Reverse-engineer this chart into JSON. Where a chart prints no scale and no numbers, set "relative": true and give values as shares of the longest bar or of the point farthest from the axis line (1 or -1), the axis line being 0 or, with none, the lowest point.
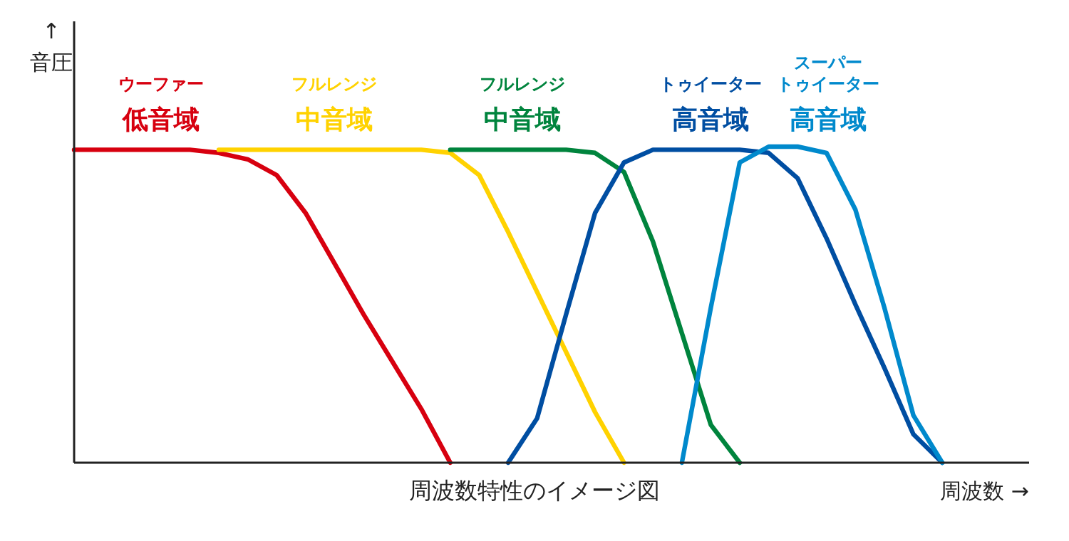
{
  "chart_data": {
    "type": "line",
    "relative": true,
    "xlabel": "周波数 →",
    "ylabel": "↑\n音圧",
    "annotations": [
      "周波数特性のイメージ図"
    ],
    "line_style": "solid",
    "categories": [
      null,
      null,
      null,
      null,
      null,
      null,
      null,
      null,
      null,
      null,
      null,
      null,
      null,
      null,
      null,
      null,
      null,
      null,
      null,
      null,
      null,
      null,
      null,
      null,
      null,
      null,
      null,
      null,
      null,
      null,
      null,
      null,
      null,
      null
    ],
    "series": [
      {
        "name": "ウーファー低音域",
        "color": "#d7000f",
        "values": [
          0.99,
          0.99,
          0.99,
          0.99,
          0.99,
          0.98,
          0.96,
          0.91,
          0.79,
          0.63,
          0.47,
          0.32,
          0.17,
          0,
          null,
          null,
          null,
          null,
          null,
          null,
          null,
          null,
          null,
          null,
          null,
          null,
          null,
          null,
          null,
          null,
          null,
          null,
          null,
          null
        ]
      },
      {
        "name": "フルレンジ中音域",
        "color": "#ffd200",
        "values": [
          null,
          null,
          null,
          null,
          null,
          0.99,
          0.99,
          0.99,
          0.99,
          0.99,
          0.99,
          0.99,
          0.99,
          0.98,
          0.91,
          0.73,
          0.54,
          0.35,
          0.16,
          0,
          null,
          null,
          null,
          null,
          null,
          null,
          null,
          null,
          null,
          null,
          null,
          null,
          null,
          null
        ]
      },
      {
        "name": "フルレンジ中音域",
        "color": "#00843d",
        "values": [
          null,
          null,
          null,
          null,
          null,
          null,
          null,
          null,
          null,
          null,
          null,
          null,
          null,
          0.99,
          0.99,
          0.99,
          0.99,
          0.99,
          0.98,
          0.92,
          0.7,
          0.41,
          0.12,
          0,
          null,
          null,
          null,
          null,
          null,
          null,
          null,
          null,
          null,
          null
        ]
      },
      {
        "name": "トゥイーター高音域",
        "color": "#004ea2",
        "values": [
          null,
          null,
          null,
          null,
          null,
          null,
          null,
          null,
          null,
          null,
          null,
          null,
          null,
          null,
          null,
          0,
          0.14,
          0.47,
          0.79,
          0.95,
          0.99,
          0.99,
          0.99,
          0.99,
          0.98,
          0.9,
          0.71,
          0.5,
          0.3,
          0.09,
          0,
          null,
          null,
          null
        ]
      },
      {
        "name": "スーパートゥイーター高音域",
        "color": "#0089cc",
        "values": [
          null,
          null,
          null,
          null,
          null,
          null,
          null,
          null,
          null,
          null,
          null,
          null,
          null,
          null,
          null,
          null,
          null,
          null,
          null,
          null,
          null,
          0,
          0.49,
          0.95,
          1,
          1,
          0.98,
          0.8,
          0.49,
          0.15,
          0,
          null,
          null,
          null
        ]
      }
    ]
  }
}
